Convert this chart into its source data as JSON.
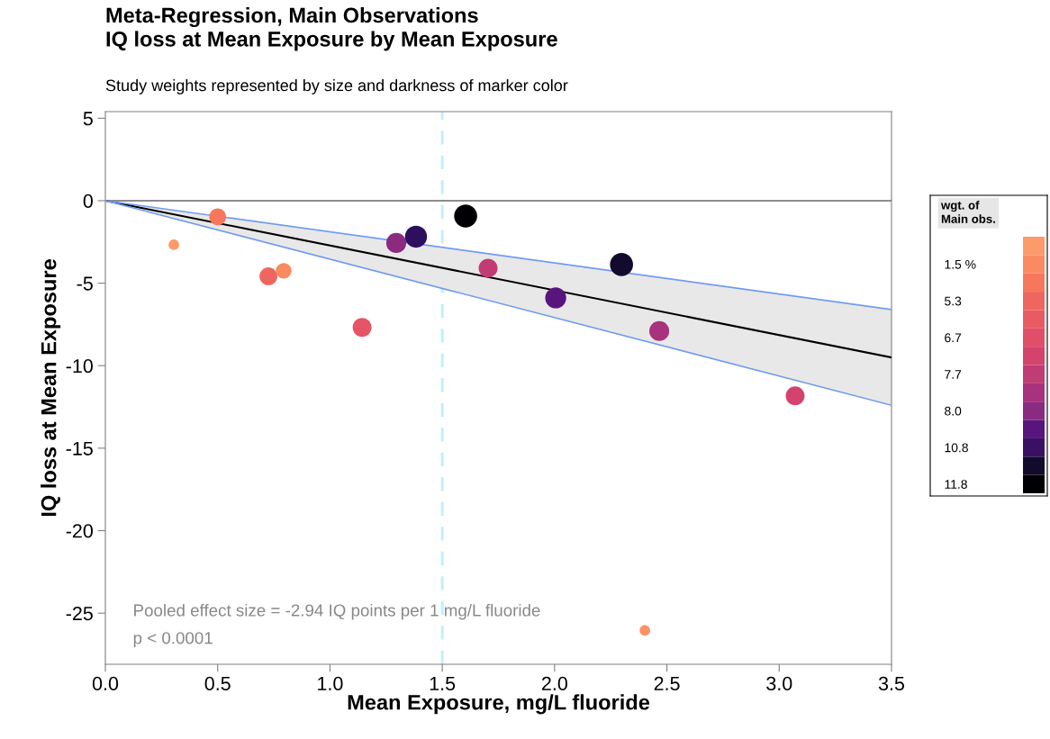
{
  "chart_data": [
    {
      "type": "scatter",
      "title": "Meta-Regression, Main Observations\nIQ loss at Mean Exposure by Mean Exposure",
      "subtitle": "Study weights represented by size and darkness of marker color",
      "xlabel": "Mean Exposure, mg/L fluoride",
      "ylabel": "IQ loss at Mean Exposure",
      "series": [
        {
          "type": "line",
          "color": "#000000",
          "x": [
            0,
            3.5
          ],
          "values": [
            0,
            -9.5
          ],
          "lower": [
            0,
            -12.4
          ],
          "upper": [
            0,
            -6.6
          ]
        },
        {
          "type": "line",
          "color": "#6f9cf0",
          "x": [
            0,
            3.5
          ],
          "values": [
            0,
            -6.6
          ]
        },
        {
          "type": "line",
          "color": "#6f9cf0",
          "x": [
            0,
            3.5
          ],
          "values": [
            0,
            -12.4
          ]
        },
        {
          "type": "scatter",
          "marker": "circle",
          "x": [
            0.305,
            0.5,
            0.726,
            0.794,
            1.143,
            1.295,
            1.383,
            1.604,
            1.704,
            2.005,
            2.298,
            2.466,
            3.071,
            2.402
          ],
          "values": [
            -2.67,
            -0.98,
            -4.58,
            -4.25,
            -7.68,
            -2.56,
            -2.18,
            -0.93,
            -4.09,
            -5.89,
            -3.87,
            -7.9,
            -11.83,
            -26.05
          ],
          "sizes": [
            0.21,
            0.53,
            0.6,
            0.46,
            0.67,
            0.75,
            0.91,
            1,
            0.67,
            0.83,
            1,
            0.75,
            0.67,
            0.21
          ],
          "colors": [
            "#fd9a6a",
            "#f7775c",
            "#ef6660",
            "#fa8a5f",
            "#e65466",
            "#8a2a81",
            "#2d0f5e",
            "#000004",
            "#c13b75",
            "#59157e",
            "#120b2e",
            "#a8327d",
            "#d3436e",
            "#fb9266"
          ]
        }
      ],
      "ref_lines": [
        {
          "axis": "y",
          "value": 0,
          "color": "#8c8c8c",
          "line_style": "solid"
        },
        {
          "axis": "x",
          "value": 1.5,
          "color": "#c4eefb",
          "line_style": "dashed"
        }
      ],
      "annotations": [
        "Pooled effect size = -2.94 IQ points per 1 mg/L fluoride",
        "p < 0.0001"
      ],
      "xlim": [
        0,
        3.5
      ],
      "ylim": [
        -28.1,
        5.4
      ],
      "xticks": [
        {
          "value": 0,
          "label": "0.0"
        },
        {
          "value": 0.5,
          "label": "0.5"
        },
        {
          "value": 1,
          "label": "1.0"
        },
        {
          "value": 1.5,
          "label": "1.5"
        },
        {
          "value": 2,
          "label": "2.0"
        },
        {
          "value": 2.5,
          "label": "2.5"
        },
        {
          "value": 3,
          "label": "3.0"
        },
        {
          "value": 3.5,
          "label": "3.5"
        }
      ],
      "yticks": [
        5,
        0,
        -5,
        -10,
        -15,
        -20,
        -25
      ],
      "grid": false
    },
    {
      "type": "other",
      "title": "wgt. of\nMain obs.",
      "categories": [
        null,
        "1.5 %",
        null,
        "5.3",
        null,
        "6.7",
        null,
        "7.7",
        null,
        "8.0",
        null,
        "10.8",
        null,
        "11.8"
      ],
      "colors": [
        "#fd9a6a",
        "#fb8a62",
        "#f7775c",
        "#ef6660",
        "#e95a62",
        "#e04f67",
        "#d3436e",
        "#c13b75",
        "#a8327d",
        "#8a2a81",
        "#59157e",
        "#3a1065",
        "#120b2e",
        "#000004"
      ]
    }
  ]
}
